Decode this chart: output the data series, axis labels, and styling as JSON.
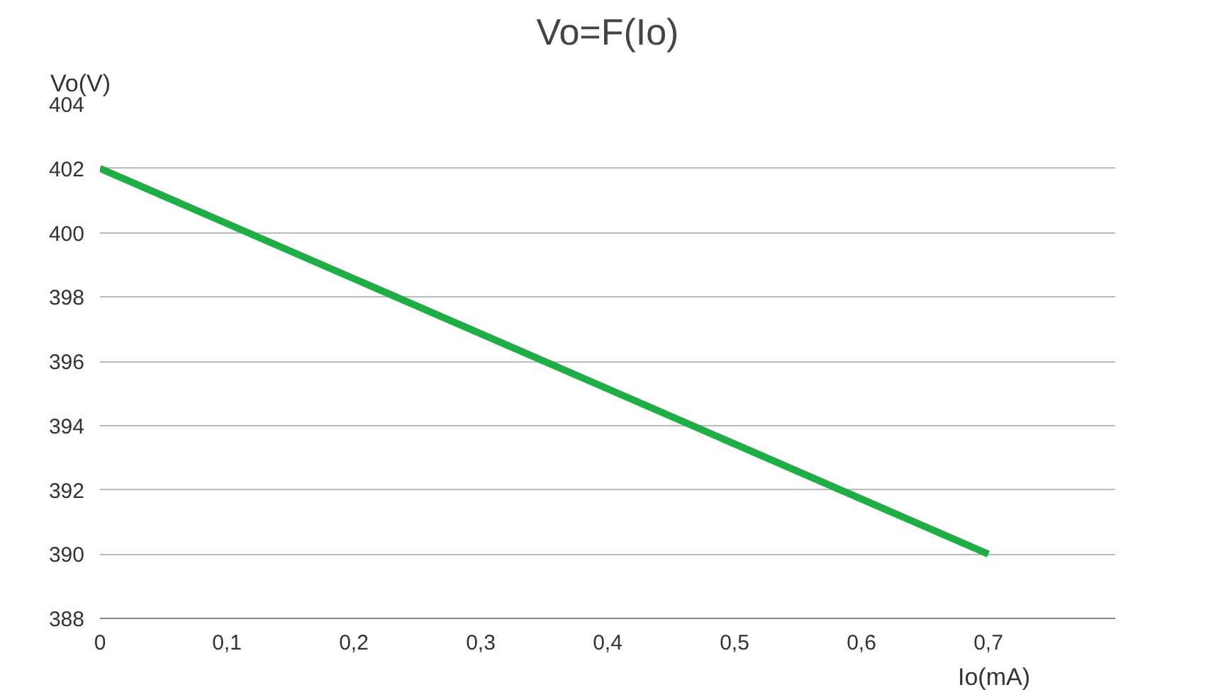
{
  "chart_data": {
    "type": "line",
    "title": "Vo=F(Io)",
    "xlabel": "Io(mA)",
    "ylabel": "Vo(V)",
    "x": [
      0,
      0.7
    ],
    "series": [
      {
        "color": "#1fad45",
        "values": [
          402,
          390
        ]
      }
    ],
    "xlim": [
      0,
      0.8
    ],
    "ylim": [
      388,
      404
    ],
    "xticks": [
      0,
      {
        "value": 0.1,
        "label": "0,1"
      },
      {
        "value": 0.2,
        "label": "0,2"
      },
      {
        "value": 0.3,
        "label": "0,3"
      },
      {
        "value": 0.4,
        "label": "0,4"
      },
      {
        "value": 0.5,
        "label": "0,5"
      },
      {
        "value": 0.6,
        "label": "0,6"
      },
      {
        "value": 0.7,
        "label": "0,7"
      }
    ],
    "yticks": [
      388,
      390,
      392,
      394,
      396,
      398,
      400,
      402,
      404
    ],
    "grid": "y",
    "marker": "none",
    "line_style": "solid"
  }
}
